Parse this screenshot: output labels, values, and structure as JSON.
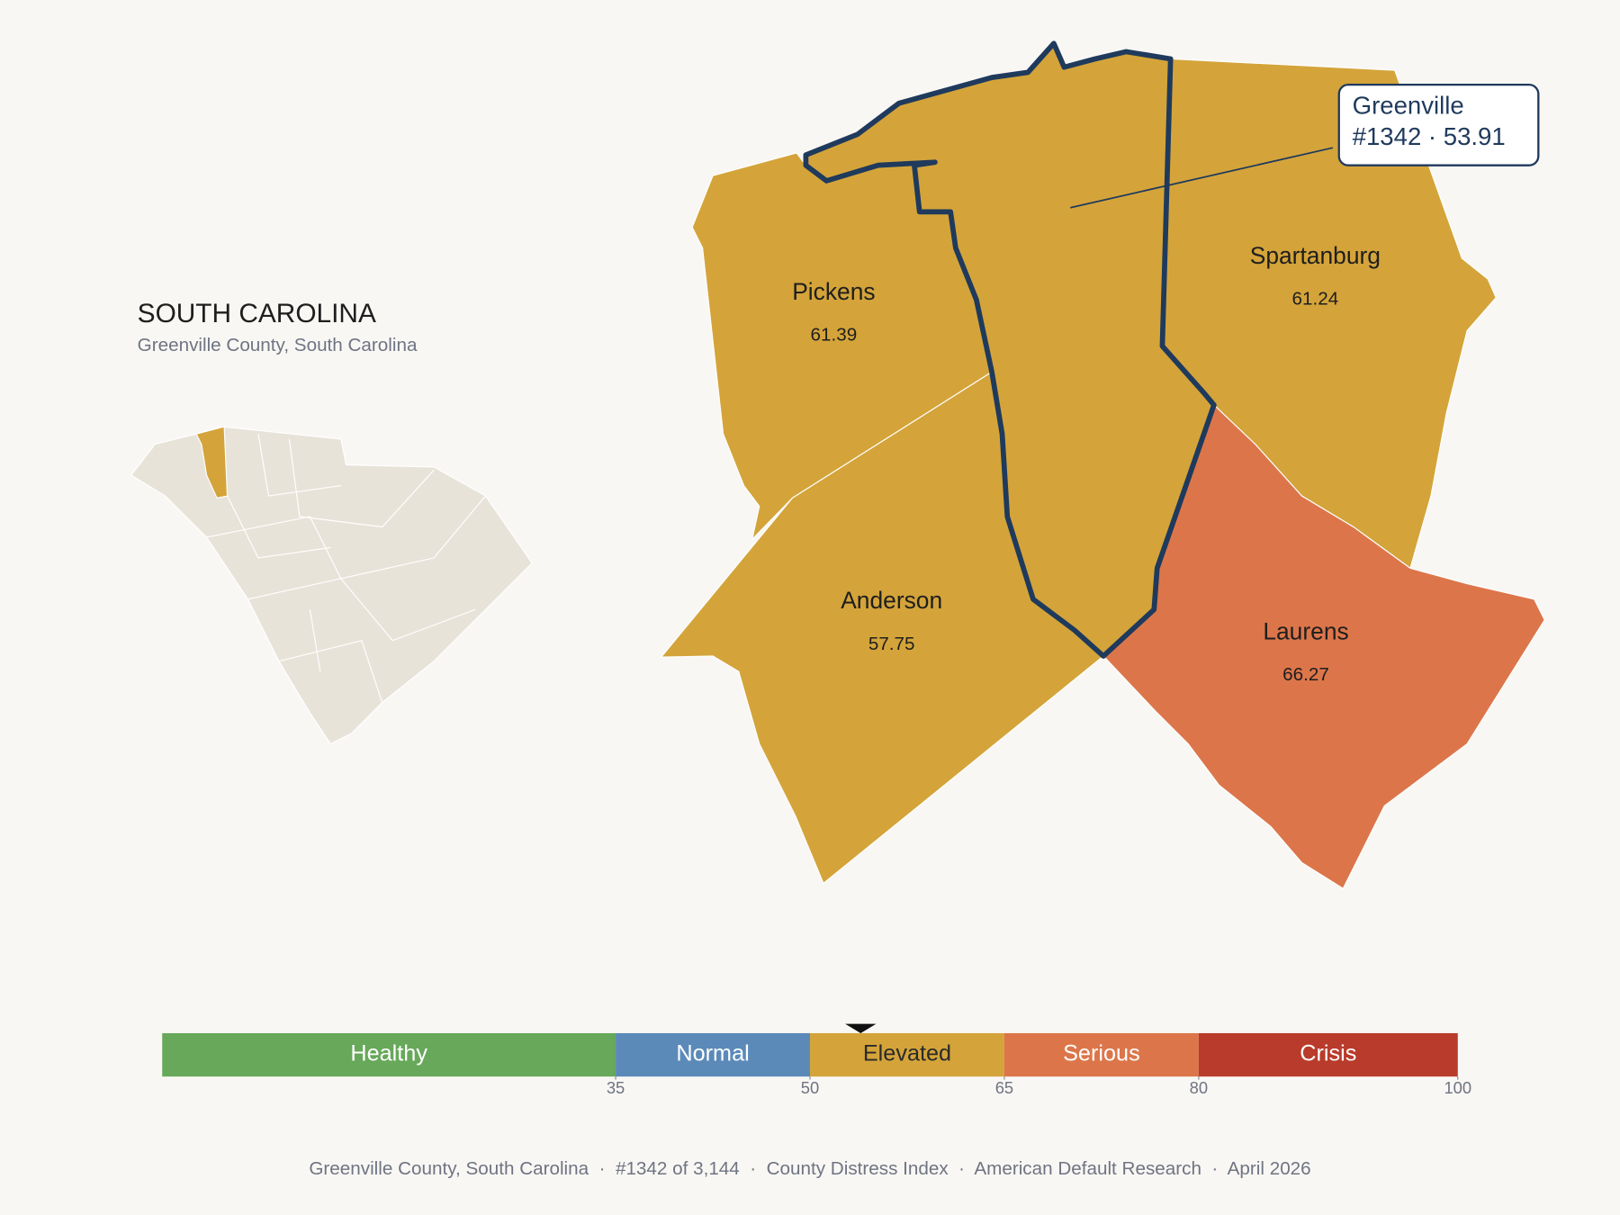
{
  "header": {
    "title": "SOUTH CAROLINA",
    "subtitle": "Greenville County, South Carolina"
  },
  "map": {
    "counties": [
      {
        "name": "Pickens",
        "value": 61.39
      },
      {
        "name": "Spartanburg",
        "value": 61.24
      },
      {
        "name": "Anderson",
        "value": 57.75
      },
      {
        "name": "Laurens",
        "value": 66.27
      }
    ],
    "callout": {
      "name": "Greenville",
      "label": "#1342 · 53.91",
      "value": 53.91
    }
  },
  "legend": {
    "range": [
      0,
      100
    ],
    "ticks": [
      35,
      50,
      65,
      80,
      100
    ],
    "bands": [
      {
        "name": "Healthy",
        "color": "#67a85a",
        "text_color": "#ffffff"
      },
      {
        "name": "Normal",
        "color": "#5b8ab9",
        "text_color": "#ffffff"
      },
      {
        "name": "Elevated",
        "color": "#d4a43a",
        "text_color": "#2a2a2a"
      },
      {
        "name": "Serious",
        "color": "#dc764a",
        "text_color": "#ffffff"
      },
      {
        "name": "Crisis",
        "color": "#b93b2c",
        "text_color": "#ffffff"
      }
    ]
  },
  "footer": "Greenville County, South Carolina  ·  #1342 of 3,144  ·  County Distress Index  ·  American Default Research  ·  April 2026"
}
